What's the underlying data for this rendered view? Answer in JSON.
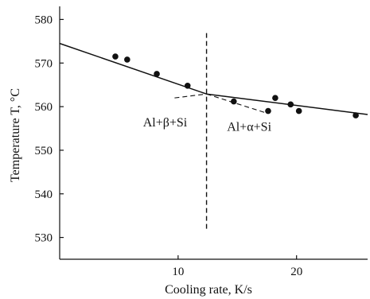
{
  "chart_data": {
    "type": "scatter",
    "xlabel": "Cooling rate, K/s",
    "ylabel": "Temperature T, °C",
    "xlim": [
      0,
      26
    ],
    "ylim": [
      525,
      583
    ],
    "x_ticks": [
      10,
      20
    ],
    "y_ticks": [
      530,
      540,
      550,
      560,
      570,
      580
    ],
    "grid": false,
    "points": [
      {
        "x": 4.7,
        "y": 571.5
      },
      {
        "x": 5.7,
        "y": 570.8
      },
      {
        "x": 8.2,
        "y": 567.5
      },
      {
        "x": 10.8,
        "y": 564.8
      },
      {
        "x": 14.7,
        "y": 561.2
      },
      {
        "x": 17.6,
        "y": 559.0
      },
      {
        "x": 18.2,
        "y": 562.0
      },
      {
        "x": 19.5,
        "y": 560.5
      },
      {
        "x": 20.2,
        "y": 559.0
      },
      {
        "x": 25.0,
        "y": 558.0
      }
    ],
    "fit_lines": [
      {
        "style": "solid",
        "points": [
          [
            0,
            574.5
          ],
          [
            12.4,
            562.9
          ]
        ]
      },
      {
        "style": "solid",
        "points": [
          [
            12.4,
            562.9
          ],
          [
            26,
            558.2
          ]
        ]
      },
      {
        "style": "dashed",
        "points": [
          [
            9.7,
            562.0
          ],
          [
            12.4,
            562.9
          ]
        ]
      },
      {
        "style": "dashed",
        "points": [
          [
            12.4,
            562.9
          ],
          [
            17.5,
            558.5
          ]
        ]
      }
    ],
    "transition": {
      "x": 12.4,
      "y_from": 532,
      "y_to": 577.5
    },
    "annotations": [
      {
        "text": "Al+β+Si",
        "x": 8.9,
        "y": 555.5
      },
      {
        "text": "Al+α+Si",
        "x": 16.0,
        "y": 554.5
      }
    ]
  }
}
